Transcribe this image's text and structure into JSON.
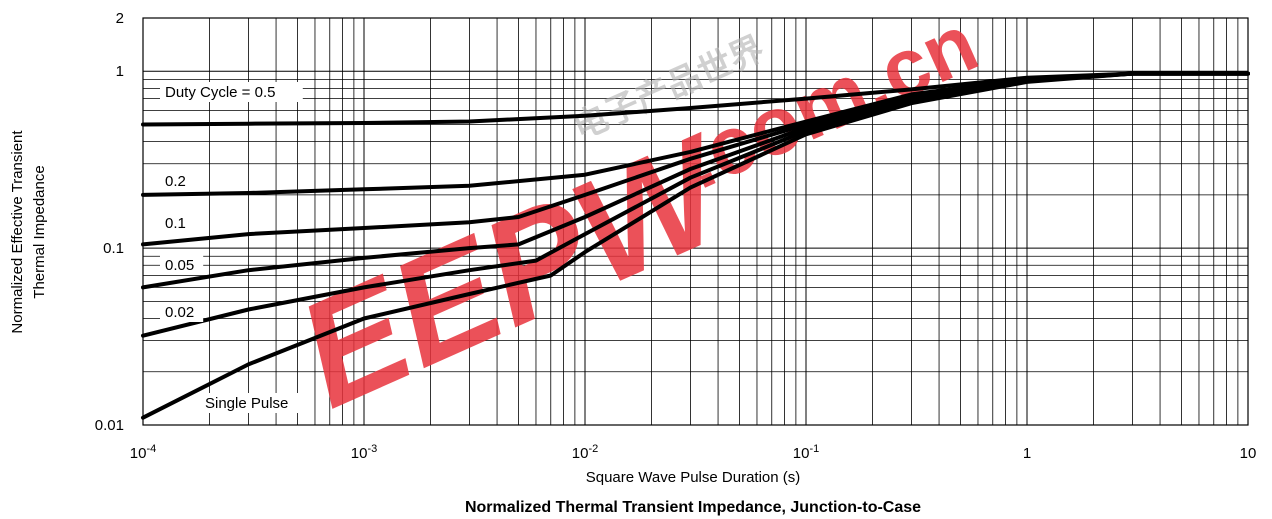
{
  "chart_data": {
    "type": "line",
    "title": "Normalized Thermal Transient Impedance, Junction-to-Case",
    "xlabel": "Square Wave Pulse Duration (s)",
    "ylabel_line1": "Normalized Effective Transient",
    "ylabel_line2": "Thermal Impedance",
    "x_scale": "log",
    "y_scale": "log",
    "xlim": [
      0.0001,
      10
    ],
    "ylim": [
      0.01,
      2
    ],
    "grid": true,
    "x_ticks": [
      {
        "value": 0.0001,
        "base": "10",
        "exp": "-4"
      },
      {
        "value": 0.001,
        "base": "10",
        "exp": "-3"
      },
      {
        "value": 0.01,
        "base": "10",
        "exp": "-2"
      },
      {
        "value": 0.1,
        "base": "10",
        "exp": "-1"
      },
      {
        "value": 1,
        "base": "1",
        "exp": ""
      },
      {
        "value": 10,
        "base": "10",
        "exp": ""
      }
    ],
    "y_ticks": [
      {
        "value": 0.01,
        "label": "0.01"
      },
      {
        "value": 0.1,
        "label": "0.1"
      },
      {
        "value": 1,
        "label": "1"
      },
      {
        "value": 2,
        "label": "2"
      }
    ],
    "series": [
      {
        "name": "Duty Cycle = 0.5",
        "x": [
          0.0001,
          0.0003,
          0.001,
          0.003,
          0.01,
          0.03,
          0.1,
          0.3,
          1,
          3,
          10
        ],
        "y": [
          0.5,
          0.505,
          0.51,
          0.52,
          0.56,
          0.62,
          0.7,
          0.79,
          0.92,
          0.97,
          0.97
        ]
      },
      {
        "name": "0.2",
        "x": [
          0.0001,
          0.0003,
          0.001,
          0.003,
          0.01,
          0.03,
          0.1,
          0.3,
          1,
          3,
          10
        ],
        "y": [
          0.2,
          0.205,
          0.215,
          0.225,
          0.26,
          0.35,
          0.52,
          0.74,
          0.9,
          0.97,
          0.97
        ]
      },
      {
        "name": "0.1",
        "x": [
          0.0001,
          0.0003,
          0.001,
          0.003,
          0.005,
          0.01,
          0.03,
          0.1,
          0.3,
          1,
          3,
          10
        ],
        "y": [
          0.105,
          0.12,
          0.13,
          0.14,
          0.15,
          0.2,
          0.32,
          0.5,
          0.72,
          0.9,
          0.97,
          0.97
        ]
      },
      {
        "name": "0.05",
        "x": [
          0.0001,
          0.0003,
          0.001,
          0.003,
          0.005,
          0.01,
          0.03,
          0.1,
          0.3,
          1,
          3,
          10
        ],
        "y": [
          0.06,
          0.075,
          0.088,
          0.1,
          0.105,
          0.15,
          0.28,
          0.48,
          0.7,
          0.89,
          0.97,
          0.97
        ]
      },
      {
        "name": "0.02",
        "x": [
          0.0001,
          0.0003,
          0.001,
          0.003,
          0.006,
          0.01,
          0.03,
          0.1,
          0.3,
          1,
          3,
          10
        ],
        "y": [
          0.032,
          0.045,
          0.06,
          0.075,
          0.085,
          0.12,
          0.25,
          0.46,
          0.68,
          0.88,
          0.97,
          0.97
        ]
      },
      {
        "name": "Single Pulse",
        "x": [
          0.0001,
          0.0003,
          0.001,
          0.003,
          0.007,
          0.01,
          0.03,
          0.1,
          0.3,
          1,
          3,
          10
        ],
        "y": [
          0.011,
          0.022,
          0.04,
          0.055,
          0.07,
          0.095,
          0.22,
          0.44,
          0.66,
          0.87,
          0.97,
          0.97
        ]
      }
    ]
  },
  "watermark": {
    "brand": "EEPW",
    "domain": ".com.cn",
    "chinese": "电子产品世界",
    "color": "#e8323c"
  }
}
